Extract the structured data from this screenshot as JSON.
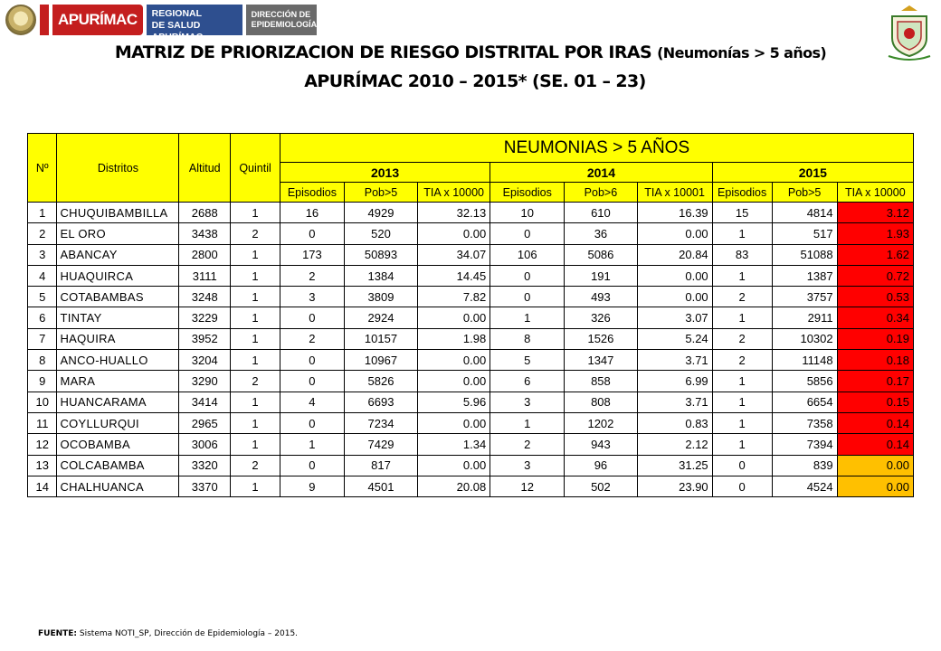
{
  "header": {
    "brand": "APURÍMAC",
    "dir_regional_line1": "DIRECCIÓN REGIONAL",
    "dir_regional_line2": "DE SALUD APURÍMAC",
    "dir_epi_line1": "DIRECCIÓN DE",
    "dir_epi_line2": "EPIDEMIOLOGÍA"
  },
  "title": {
    "line1_main": "MATRIZ DE PRIORIZACION DE RIESGO DISTRITAL POR IRAS ",
    "line1_sub": "(Neumonías > 5 años)",
    "line2": "APURÍMAC 2010 – 2015* (SE. 01 – 23)"
  },
  "table": {
    "col_headers": {
      "num": "Nº",
      "district": "Distritos",
      "altitude": "Altitud",
      "quintile": "Quintil"
    },
    "group_title": "NEUMONIAS  >  5 AÑOS",
    "years": [
      "2013",
      "2014",
      "2015"
    ],
    "sub_headers": [
      "Episodios",
      "Pob>5",
      "TIA x 10000",
      "Episodios",
      "Pob>6",
      "TIA x 10001",
      "Episodios",
      "Pob>5",
      "TIA x 10000"
    ],
    "rows": [
      {
        "n": "1",
        "district": "CHUQUIBAMBILLA",
        "alt": "2688",
        "q": "1",
        "e13": "16",
        "p13": "4929",
        "t13": "32.13",
        "e14": "10",
        "p14": "610",
        "t14": "16.39",
        "e15": "15",
        "p15": "4814",
        "t15": "3.12",
        "risk": "high"
      },
      {
        "n": "2",
        "district": "EL ORO",
        "alt": "3438",
        "q": "2",
        "e13": "0",
        "p13": "520",
        "t13": "0.00",
        "e14": "0",
        "p14": "36",
        "t14": "0.00",
        "e15": "1",
        "p15": "517",
        "t15": "1.93",
        "risk": "high"
      },
      {
        "n": "3",
        "district": "ABANCAY",
        "alt": "2800",
        "q": "1",
        "e13": "173",
        "p13": "50893",
        "t13": "34.07",
        "e14": "106",
        "p14": "5086",
        "t14": "20.84",
        "e15": "83",
        "p15": "51088",
        "t15": "1.62",
        "risk": "high"
      },
      {
        "n": "4",
        "district": "HUAQUIRCA",
        "alt": "3111",
        "q": "1",
        "e13": "2",
        "p13": "1384",
        "t13": "14.45",
        "e14": "0",
        "p14": "191",
        "t14": "0.00",
        "e15": "1",
        "p15": "1387",
        "t15": "0.72",
        "risk": "high"
      },
      {
        "n": "5",
        "district": "COTABAMBAS",
        "alt": "3248",
        "q": "1",
        "e13": "3",
        "p13": "3809",
        "t13": "7.82",
        "e14": "0",
        "p14": "493",
        "t14": "0.00",
        "e15": "2",
        "p15": "3757",
        "t15": "0.53",
        "risk": "high"
      },
      {
        "n": "6",
        "district": "TINTAY",
        "alt": "3229",
        "q": "1",
        "e13": "0",
        "p13": "2924",
        "t13": "0.00",
        "e14": "1",
        "p14": "326",
        "t14": "3.07",
        "e15": "1",
        "p15": "2911",
        "t15": "0.34",
        "risk": "high"
      },
      {
        "n": "7",
        "district": "HAQUIRA",
        "alt": "3952",
        "q": "1",
        "e13": "2",
        "p13": "10157",
        "t13": "1.98",
        "e14": "8",
        "p14": "1526",
        "t14": "5.24",
        "e15": "2",
        "p15": "10302",
        "t15": "0.19",
        "risk": "high"
      },
      {
        "n": "8",
        "district": "ANCO-HUALLO",
        "alt": "3204",
        "q": "1",
        "e13": "0",
        "p13": "10967",
        "t13": "0.00",
        "e14": "5",
        "p14": "1347",
        "t14": "3.71",
        "e15": "2",
        "p15": "11148",
        "t15": "0.18",
        "risk": "high"
      },
      {
        "n": "9",
        "district": "MARA",
        "alt": "3290",
        "q": "2",
        "e13": "0",
        "p13": "5826",
        "t13": "0.00",
        "e14": "6",
        "p14": "858",
        "t14": "6.99",
        "e15": "1",
        "p15": "5856",
        "t15": "0.17",
        "risk": "high"
      },
      {
        "n": "10",
        "district": "HUANCARAMA",
        "alt": "3414",
        "q": "1",
        "e13": "4",
        "p13": "6693",
        "t13": "5.96",
        "e14": "3",
        "p14": "808",
        "t14": "3.71",
        "e15": "1",
        "p15": "6654",
        "t15": "0.15",
        "risk": "high"
      },
      {
        "n": "11",
        "district": "COYLLURQUI",
        "alt": "2965",
        "q": "1",
        "e13": "0",
        "p13": "7234",
        "t13": "0.00",
        "e14": "1",
        "p14": "1202",
        "t14": "0.83",
        "e15": "1",
        "p15": "7358",
        "t15": "0.14",
        "risk": "high"
      },
      {
        "n": "12",
        "district": "OCOBAMBA",
        "alt": "3006",
        "q": "1",
        "e13": "1",
        "p13": "7429",
        "t13": "1.34",
        "e14": "2",
        "p14": "943",
        "t14": "2.12",
        "e15": "1",
        "p15": "7394",
        "t15": "0.14",
        "risk": "high"
      },
      {
        "n": "13",
        "district": "COLCABAMBA",
        "alt": "3320",
        "q": "2",
        "e13": "0",
        "p13": "817",
        "t13": "0.00",
        "e14": "3",
        "p14": "96",
        "t14": "31.25",
        "e15": "0",
        "p15": "839",
        "t15": "0.00",
        "risk": "medium"
      },
      {
        "n": "14",
        "district": "CHALHUANCA",
        "alt": "3370",
        "q": "1",
        "e13": "9",
        "p13": "4501",
        "t13": "20.08",
        "e14": "12",
        "p14": "502",
        "t14": "23.90",
        "e15": "0",
        "p15": "4524",
        "t15": "0.00",
        "risk": "medium"
      }
    ]
  },
  "colors": {
    "header_yellow": "#ffff00",
    "risk_high": "#ff0000",
    "risk_medium": "#ffc000"
  },
  "footer": {
    "label": "FUENTE:",
    "text": " Sistema NOTI_SP, Dirección de Epidemiología – 2015."
  }
}
